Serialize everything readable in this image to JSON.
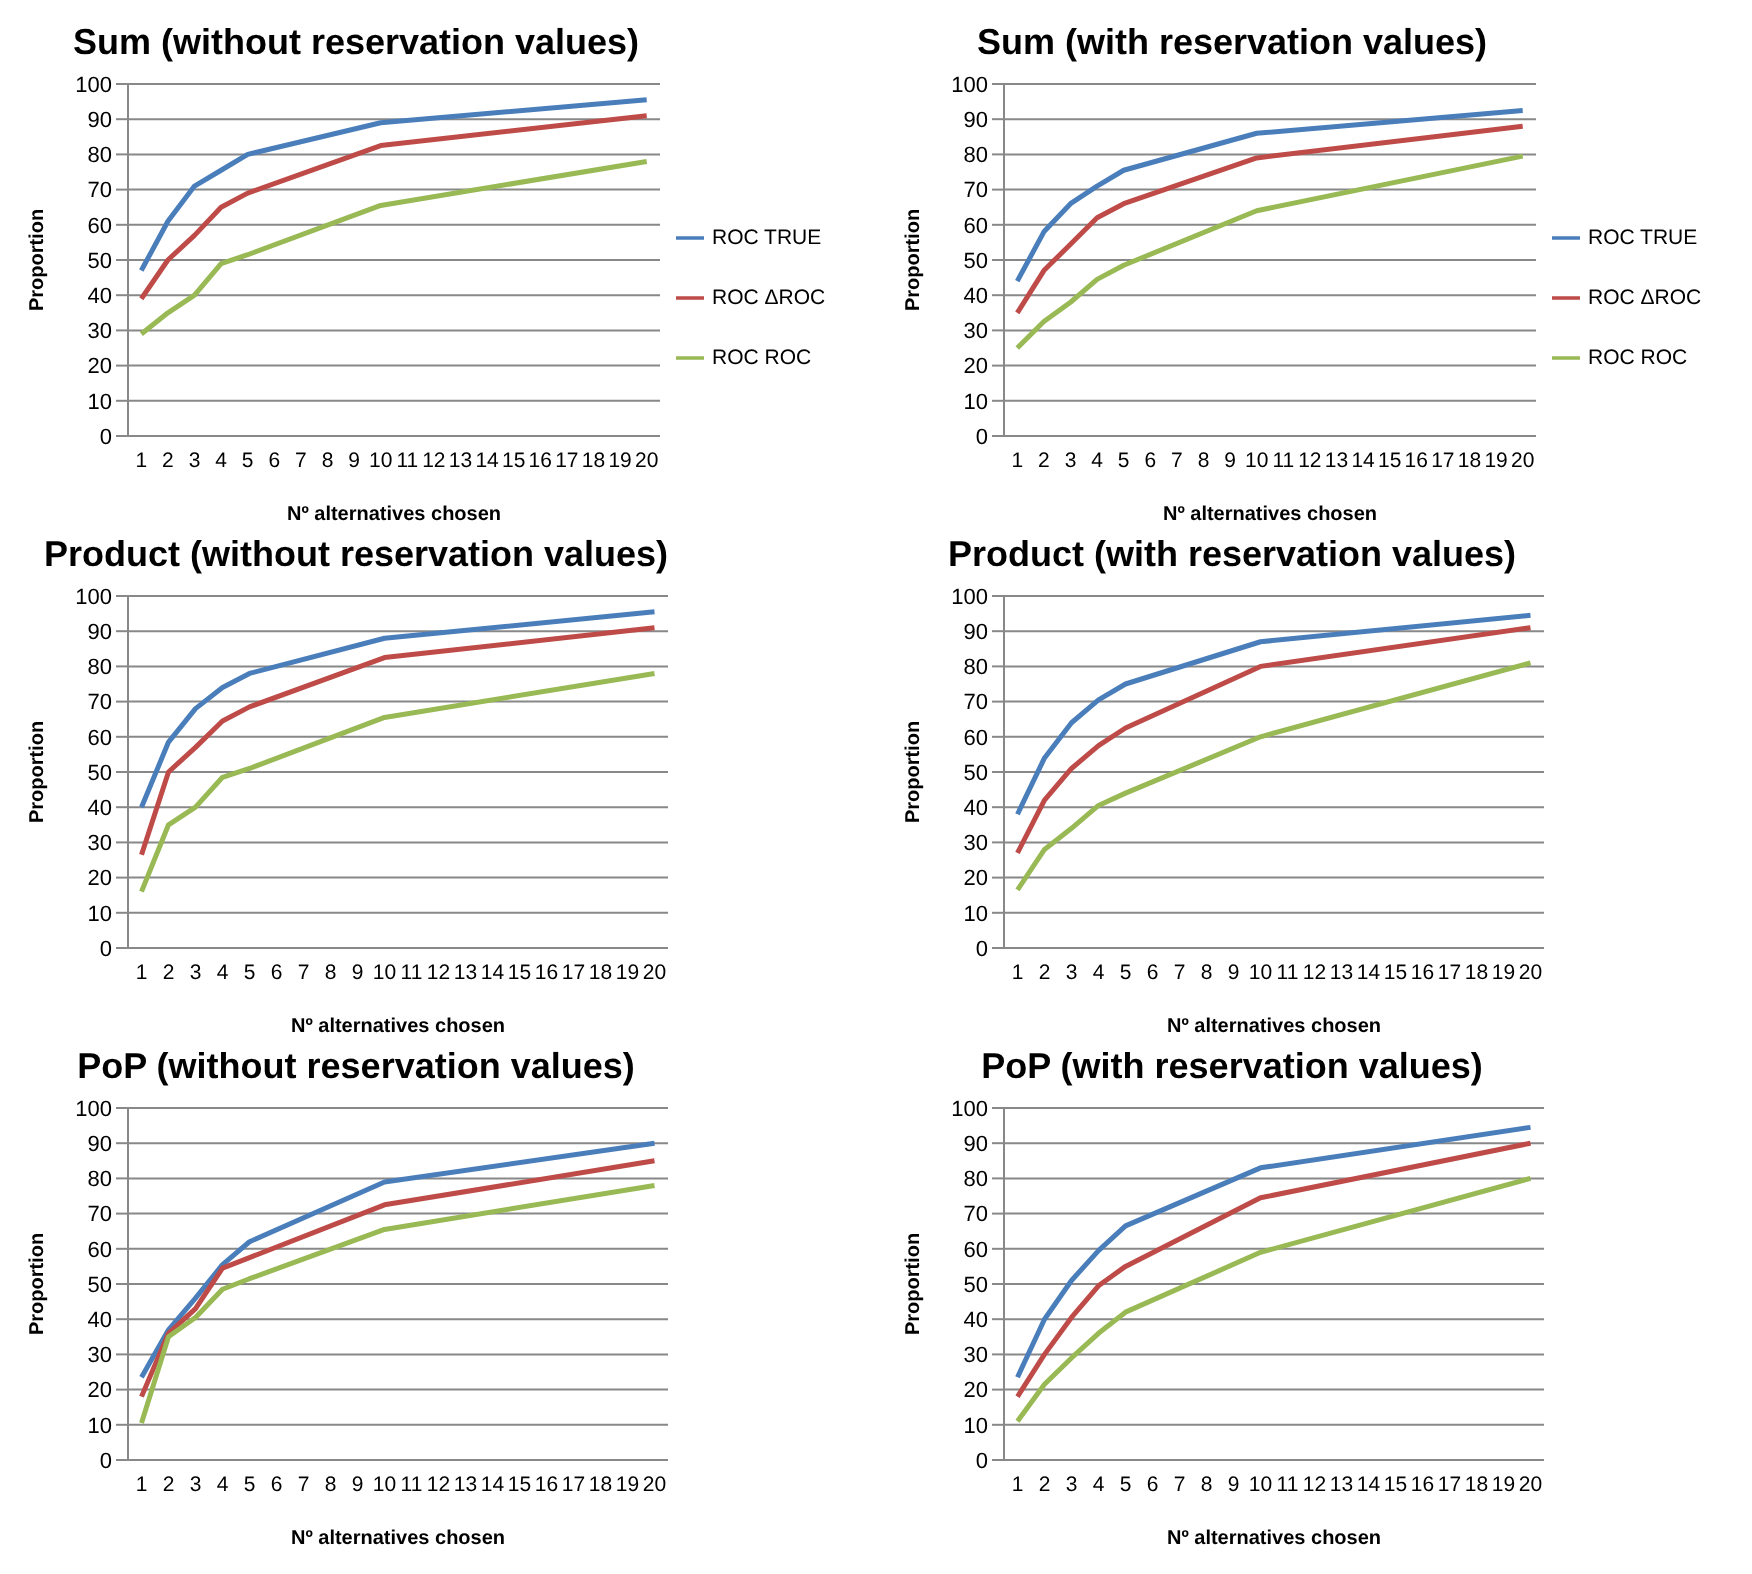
{
  "chart_data": [
    {
      "type": "line",
      "title": "Sum (without reservation values)",
      "xlabel": "Nº alternatives chosen",
      "ylabel": "Proportion",
      "x": [
        1,
        2,
        3,
        4,
        5,
        10,
        20
      ],
      "xlim": [
        0.5,
        20.5
      ],
      "xticks": [
        1,
        2,
        3,
        4,
        5,
        6,
        7,
        8,
        9,
        10,
        11,
        12,
        13,
        14,
        15,
        16,
        17,
        18,
        19,
        20
      ],
      "ylim": [
        0,
        100
      ],
      "yticks": [
        0,
        10,
        20,
        30,
        40,
        50,
        60,
        70,
        80,
        90,
        100
      ],
      "grid": "y",
      "legend": "right",
      "series": [
        {
          "name": "ROC TRUE",
          "color": "#4a7ebb",
          "values": [
            47,
            61,
            71,
            75.5,
            80,
            89,
            95.5
          ]
        },
        {
          "name": "ROC ΔROC",
          "color": "#be4b48",
          "values": [
            39,
            50,
            57,
            65,
            69,
            82.5,
            91
          ]
        },
        {
          "name": "ROC ROC",
          "color": "#98b954",
          "values": [
            29,
            35,
            40,
            49,
            51.5,
            65.5,
            78
          ]
        }
      ]
    },
    {
      "type": "line",
      "title": "Sum (with reservation values)",
      "xlabel": "Nº alternatives chosen",
      "ylabel": "Proportion",
      "x": [
        1,
        2,
        3,
        4,
        5,
        10,
        20
      ],
      "xlim": [
        0.5,
        20.5
      ],
      "xticks": [
        1,
        2,
        3,
        4,
        5,
        6,
        7,
        8,
        9,
        10,
        11,
        12,
        13,
        14,
        15,
        16,
        17,
        18,
        19,
        20
      ],
      "ylim": [
        0,
        100
      ],
      "yticks": [
        0,
        10,
        20,
        30,
        40,
        50,
        60,
        70,
        80,
        90,
        100
      ],
      "grid": "y",
      "legend": "right",
      "series": [
        {
          "name": "ROC TRUE",
          "color": "#4a7ebb",
          "values": [
            44,
            58,
            66,
            71,
            75.5,
            86,
            92.5
          ]
        },
        {
          "name": "ROC ΔROC",
          "color": "#be4b48",
          "values": [
            35,
            47,
            54.5,
            62,
            66,
            79,
            88
          ]
        },
        {
          "name": "ROC ROC",
          "color": "#98b954",
          "values": [
            25,
            32.5,
            38,
            44.5,
            48.5,
            64,
            79.5
          ]
        }
      ]
    },
    {
      "type": "line",
      "title": "Product (without reservation values)",
      "xlabel": "Nº alternatives chosen",
      "ylabel": "Proportion",
      "x": [
        1,
        2,
        3,
        4,
        5,
        10,
        20
      ],
      "xlim": [
        0.5,
        20.5
      ],
      "xticks": [
        1,
        2,
        3,
        4,
        5,
        6,
        7,
        8,
        9,
        10,
        11,
        12,
        13,
        14,
        15,
        16,
        17,
        18,
        19,
        20
      ],
      "ylim": [
        0,
        100
      ],
      "yticks": [
        0,
        10,
        20,
        30,
        40,
        50,
        60,
        70,
        80,
        90,
        100
      ],
      "grid": "y",
      "series": [
        {
          "color": "#4a7ebb",
          "values": [
            40,
            58.5,
            68,
            74,
            78,
            88,
            95.5
          ]
        },
        {
          "color": "#be4b48",
          "values": [
            26.5,
            50,
            57,
            64.5,
            68.5,
            82.5,
            91
          ]
        },
        {
          "color": "#98b954",
          "values": [
            16,
            35,
            40,
            48.5,
            51,
            65.5,
            78
          ]
        }
      ]
    },
    {
      "type": "line",
      "title": "Product (with reservation values)",
      "xlabel": "Nº alternatives chosen",
      "ylabel": "Proportion",
      "x": [
        1,
        2,
        3,
        4,
        5,
        10,
        20
      ],
      "xlim": [
        0.5,
        20.5
      ],
      "xticks": [
        1,
        2,
        3,
        4,
        5,
        6,
        7,
        8,
        9,
        10,
        11,
        12,
        13,
        14,
        15,
        16,
        17,
        18,
        19,
        20
      ],
      "ylim": [
        0,
        100
      ],
      "yticks": [
        0,
        10,
        20,
        30,
        40,
        50,
        60,
        70,
        80,
        90,
        100
      ],
      "grid": "y",
      "series": [
        {
          "color": "#4a7ebb",
          "values": [
            38,
            54,
            64,
            70.5,
            75,
            87,
            94.5
          ]
        },
        {
          "color": "#be4b48",
          "values": [
            27,
            42,
            51,
            57.5,
            62.5,
            80,
            91
          ]
        },
        {
          "color": "#98b954",
          "values": [
            16.5,
            28,
            34,
            40.5,
            44,
            60,
            81
          ]
        }
      ]
    },
    {
      "type": "line",
      "title": "PoP (without reservation values)",
      "xlabel": "Nº alternatives chosen",
      "ylabel": "Proportion",
      "x": [
        1,
        2,
        3,
        4,
        5,
        10,
        20
      ],
      "xlim": [
        0.5,
        20.5
      ],
      "xticks": [
        1,
        2,
        3,
        4,
        5,
        6,
        7,
        8,
        9,
        10,
        11,
        12,
        13,
        14,
        15,
        16,
        17,
        18,
        19,
        20
      ],
      "ylim": [
        0,
        100
      ],
      "yticks": [
        0,
        10,
        20,
        30,
        40,
        50,
        60,
        70,
        80,
        90,
        100
      ],
      "grid": "y",
      "series": [
        {
          "color": "#4a7ebb",
          "values": [
            23.5,
            37,
            46,
            55.5,
            62,
            79,
            90
          ]
        },
        {
          "color": "#be4b48",
          "values": [
            18,
            36,
            43,
            54.5,
            57.5,
            72.5,
            85
          ]
        },
        {
          "color": "#98b954",
          "values": [
            10.5,
            35,
            40.5,
            48.5,
            51.5,
            65.5,
            78
          ]
        }
      ]
    },
    {
      "type": "line",
      "title": "PoP (with reservation values)",
      "xlabel": "Nº alternatives chosen",
      "ylabel": "Proportion",
      "x": [
        1,
        2,
        3,
        4,
        5,
        10,
        20
      ],
      "xlim": [
        0.5,
        20.5
      ],
      "xticks": [
        1,
        2,
        3,
        4,
        5,
        6,
        7,
        8,
        9,
        10,
        11,
        12,
        13,
        14,
        15,
        16,
        17,
        18,
        19,
        20
      ],
      "ylim": [
        0,
        100
      ],
      "yticks": [
        0,
        10,
        20,
        30,
        40,
        50,
        60,
        70,
        80,
        90,
        100
      ],
      "grid": "y",
      "series": [
        {
          "color": "#4a7ebb",
          "values": [
            23.5,
            40,
            51,
            59.5,
            66.5,
            83,
            94.5
          ]
        },
        {
          "color": "#be4b48",
          "values": [
            18,
            30,
            40.5,
            49.5,
            55,
            74.5,
            90
          ]
        },
        {
          "color": "#98b954",
          "values": [
            11,
            21.5,
            29,
            36,
            42,
            59,
            80
          ]
        }
      ]
    }
  ]
}
